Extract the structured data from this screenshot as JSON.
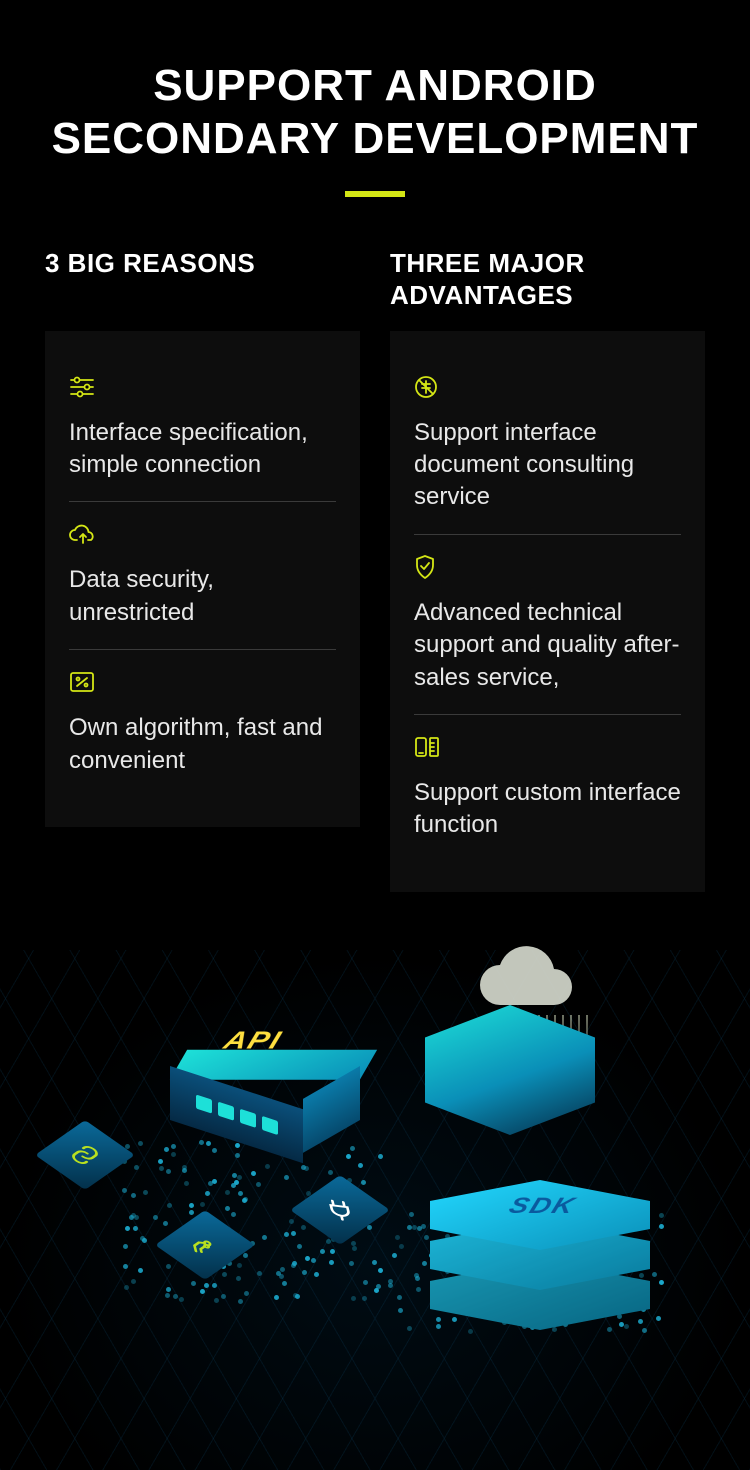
{
  "header": {
    "title_line1": "SUPPORT ANDROID",
    "title_line2": "SECONDARY DEVELOPMENT"
  },
  "accent_color": "#d4e615",
  "icon_color": "#d4e615",
  "text_color": "#e8e8e8",
  "background_color": "#000000",
  "card_background": "#0d0d0d",
  "left": {
    "heading": "3 BIG REASONS",
    "items": [
      {
        "icon": "sliders",
        "text": "Interface specification, simple connection"
      },
      {
        "icon": "cloud-up",
        "text": "Data security, unrestricted"
      },
      {
        "icon": "percent-box",
        "text": "Own algorithm, fast and convenient"
      }
    ]
  },
  "right": {
    "heading": "THREE MAJOR ADVANTAGES",
    "items": [
      {
        "icon": "no-coin",
        "text": "Support interface document consulting service"
      },
      {
        "icon": "shield-check",
        "text": "Advanced technical support and quality after-sales service,"
      },
      {
        "icon": "phone-ruler",
        "text": "Support custom interface function"
      }
    ]
  },
  "illustration": {
    "api_label": "API",
    "sdk_label": "SDK",
    "primary_cyan": "#1de0d8",
    "deep_blue": "#0a4f7a",
    "sdk_blue": "#22d8ff",
    "api_label_color": "#ffe040",
    "sdk_label_color": "#0a5a9e",
    "cloud_color": "#d7dccf",
    "plate_icons": [
      "link",
      "plug",
      "circuit"
    ],
    "grid_line_color": "rgba(10,60,90,0.25)"
  }
}
